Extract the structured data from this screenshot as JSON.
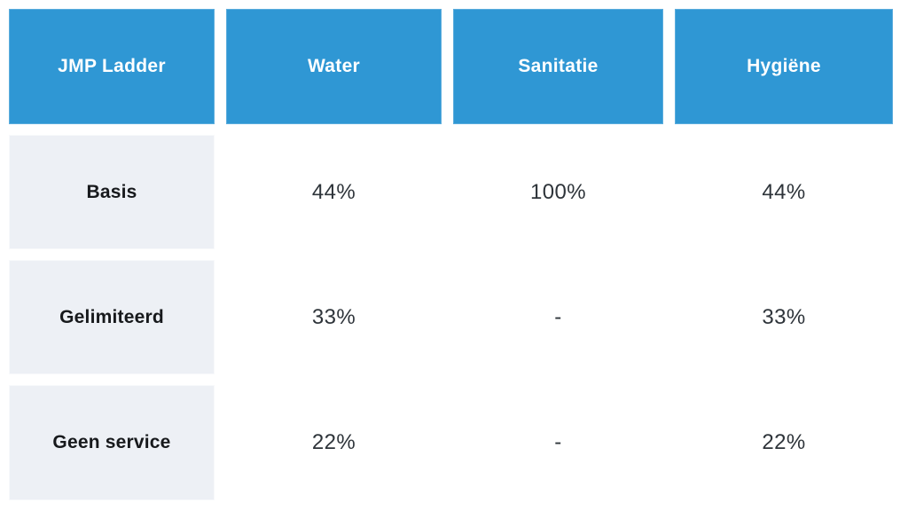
{
  "table": {
    "header": {
      "columns": [
        "JMP Ladder",
        "Water",
        "Sanitatie",
        "Hygiëne"
      ]
    },
    "rows": [
      {
        "label": "Basis",
        "values": [
          "44%",
          "100%",
          "44%"
        ]
      },
      {
        "label": "Gelimiteerd",
        "values": [
          "33%",
          "-",
          "33%"
        ]
      },
      {
        "label": "Geen service",
        "values": [
          "22%",
          "-",
          "22%"
        ]
      }
    ],
    "colors": {
      "page_bg": "#ffffff",
      "header_bg": "#2f97d4",
      "header_text": "#ffffff",
      "label_bg": "#edf0f5",
      "label_text": "#17191c",
      "value_text": "#2e343a"
    }
  },
  "chart_data": {
    "type": "table",
    "title": "JMP Ladder",
    "columns": [
      "JMP Ladder",
      "Water",
      "Sanitatie",
      "Hygiëne"
    ],
    "rows": [
      [
        "Basis",
        "44%",
        "100%",
        "44%"
      ],
      [
        "Gelimiteerd",
        "33%",
        "-",
        "33%"
      ],
      [
        "Geen service",
        "22%",
        "-",
        "22%"
      ]
    ],
    "series": [
      {
        "name": "Water",
        "values": [
          44,
          33,
          22
        ]
      },
      {
        "name": "Sanitatie",
        "values": [
          100,
          null,
          null
        ]
      },
      {
        "name": "Hygiëne",
        "values": [
          44,
          33,
          22
        ]
      }
    ],
    "categories": [
      "Basis",
      "Gelimiteerd",
      "Geen service"
    ],
    "unit": "%"
  }
}
